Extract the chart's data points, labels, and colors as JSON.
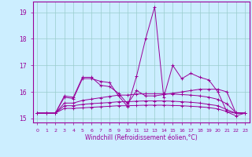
{
  "xlabel": "Windchill (Refroidissement éolien,°C)",
  "background_color": "#cceeff",
  "grid_color": "#99cccc",
  "line_color": "#990099",
  "x_ticks": [
    0,
    1,
    2,
    3,
    4,
    5,
    6,
    7,
    8,
    9,
    10,
    11,
    12,
    13,
    14,
    15,
    16,
    17,
    18,
    19,
    20,
    21,
    22,
    23
  ],
  "ylim": [
    14.85,
    19.4
  ],
  "yticks": [
    15,
    16,
    17,
    18,
    19
  ],
  "series": [
    [
      15.2,
      15.2,
      15.2,
      15.8,
      15.75,
      16.5,
      16.5,
      16.4,
      16.35,
      15.85,
      15.45,
      16.6,
      18.0,
      19.2,
      15.8,
      17.0,
      16.5,
      16.7,
      16.55,
      16.45,
      16.0,
      15.25,
      15.1,
      15.2
    ],
    [
      15.2,
      15.2,
      15.2,
      15.85,
      15.8,
      16.55,
      16.55,
      16.25,
      16.2,
      15.95,
      15.55,
      16.05,
      15.85,
      15.85,
      15.9,
      15.95,
      16.0,
      16.05,
      16.1,
      16.1,
      16.1,
      16.0,
      15.2,
      15.2
    ],
    [
      15.2,
      15.2,
      15.2,
      15.58,
      15.58,
      15.68,
      15.73,
      15.78,
      15.83,
      15.88,
      15.88,
      15.92,
      15.93,
      15.93,
      15.93,
      15.92,
      15.9,
      15.88,
      15.85,
      15.8,
      15.72,
      15.55,
      15.22,
      15.2
    ],
    [
      15.2,
      15.2,
      15.2,
      15.48,
      15.48,
      15.53,
      15.56,
      15.58,
      15.6,
      15.63,
      15.63,
      15.65,
      15.66,
      15.66,
      15.66,
      15.65,
      15.63,
      15.61,
      15.58,
      15.53,
      15.48,
      15.33,
      15.2,
      15.2
    ],
    [
      15.2,
      15.2,
      15.2,
      15.38,
      15.38,
      15.4,
      15.42,
      15.44,
      15.46,
      15.48,
      15.48,
      15.49,
      15.5,
      15.5,
      15.5,
      15.49,
      15.48,
      15.46,
      15.44,
      15.41,
      15.36,
      15.26,
      15.2,
      15.2
    ]
  ]
}
